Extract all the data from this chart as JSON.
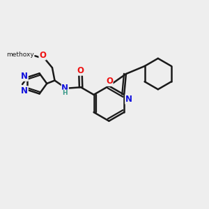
{
  "bg": "#eeeeee",
  "bc": "#1a1a1a",
  "Nc": "#1111dd",
  "Oc": "#ee1111",
  "Hc": "#3a9a8a",
  "lw": 1.8,
  "lw_thin": 1.5,
  "doff": 0.055,
  "fsA": 8.0,
  "fsS": 6.5,
  "xlim": [
    0,
    10
  ],
  "ylim": [
    0,
    10
  ]
}
